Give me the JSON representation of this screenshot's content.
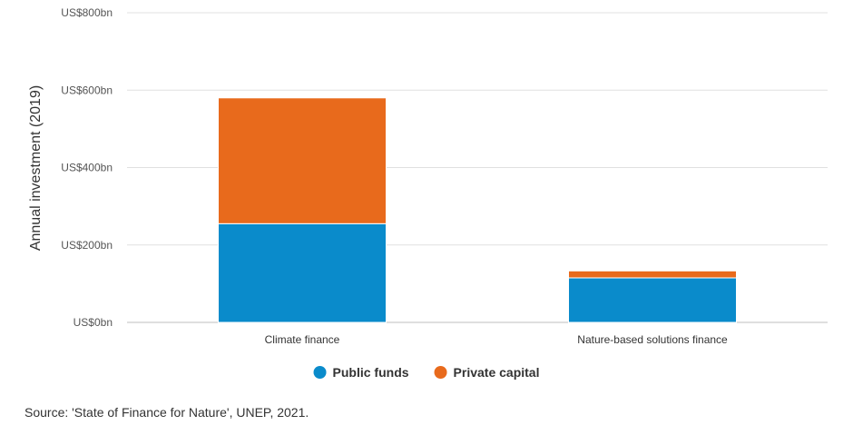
{
  "chart_data": {
    "type": "bar",
    "stacked": true,
    "ylabel": "Annual investment (2019)",
    "categories": [
      "Climate finance",
      "Nature-based solutions finance"
    ],
    "series": [
      {
        "name": "Public funds",
        "values": [
          255,
          115
        ],
        "color": "#0a8bcb"
      },
      {
        "name": "Private capital",
        "values": [
          325,
          18
        ],
        "color": "#e86a1c"
      }
    ],
    "ylim": [
      0,
      800
    ],
    "yticks": [
      0,
      200,
      400,
      600,
      800
    ],
    "ytick_labels": [
      "US$0bn",
      "US$200bn",
      "US$400bn",
      "US$600bn",
      "US$800bn"
    ],
    "grid": true,
    "legend": "bottom-center"
  },
  "source_text": "Source: 'State of Finance for Nature', UNEP, 2021."
}
